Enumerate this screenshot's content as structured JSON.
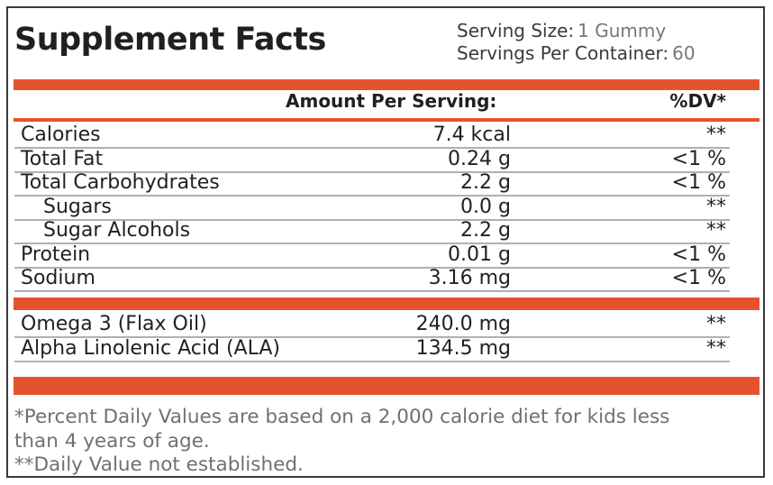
{
  "title": "Supplement Facts",
  "serving_size": {
    "label": "Serving Size:",
    "value": "1 Gummy"
  },
  "servings_per_container": {
    "label": "Servings Per Container:",
    "value": "60"
  },
  "header": {
    "amount": "Amount Per Serving:",
    "dv": "%DV*"
  },
  "nutrients": [
    {
      "name": "Calories",
      "amount": "7.4 kcal",
      "dv": "**",
      "indent": false
    },
    {
      "name": "Total Fat",
      "amount": "0.24 g",
      "dv": "<1 %",
      "indent": false
    },
    {
      "name": "Total Carbohydrates",
      "amount": "2.2 g",
      "dv": "<1 %",
      "indent": false
    },
    {
      "name": "Sugars",
      "amount": "0.0 g",
      "dv": "**",
      "indent": true
    },
    {
      "name": "Sugar Alcohols",
      "amount": "2.2 g",
      "dv": "**",
      "indent": true
    },
    {
      "name": "Protein",
      "amount": "0.01 g",
      "dv": "<1 %",
      "indent": false
    },
    {
      "name": "Sodium",
      "amount": "3.16 mg",
      "dv": "<1 %",
      "indent": false
    }
  ],
  "other_ingredients": [
    {
      "name": "Omega 3 (Flax Oil)",
      "amount": "240.0 mg",
      "dv": "**"
    },
    {
      "name": "Alpha Linolenic Acid (ALA)",
      "amount": "134.5 mg",
      "dv": "**"
    }
  ],
  "footnotes": {
    "line1": "*Percent Daily Values are based on a 2,000 calorie diet for kids less",
    "line2": "than 4 years of age.",
    "line3": "**Daily Value not established."
  },
  "colors": {
    "accent": "#e4532d",
    "text": "#231f20",
    "footnote": "#707070"
  }
}
